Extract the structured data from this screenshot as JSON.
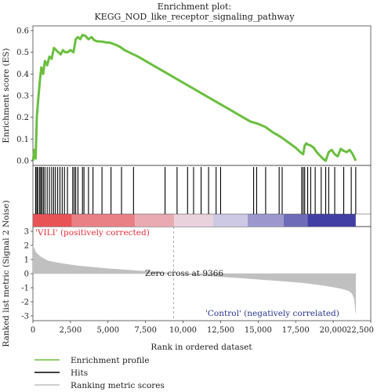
{
  "chart_data": {
    "type": "line",
    "title": "Enrichment plot:",
    "subtitle": "KEGG_NOD_like_receptor_signaling_pathway",
    "xlabel": "Rank in ordered dataset",
    "ylabel_top": "Enrichment score (ES)",
    "ylabel_bottom": "Ranked list metric (Signal 2 Noise)",
    "xlim": [
      0,
      22500
    ],
    "es_ylim": [
      0,
      0.6
    ],
    "metric_ylim": [
      -3,
      3
    ],
    "x_ticks": [
      0,
      2500,
      5000,
      7500,
      10000,
      12500,
      15000,
      17500,
      20000,
      22500
    ],
    "x_tick_labels": [
      "0",
      "2,500",
      "5,000",
      "7,500",
      "10,000",
      "12,500",
      "15,000",
      "17,500",
      "20,000",
      "22,500"
    ],
    "es_ticks": [
      0.0,
      0.1,
      0.2,
      0.3,
      0.4,
      0.5,
      0.6
    ],
    "es_tick_labels": [
      "0.0",
      "0.1",
      "0.2",
      "0.3",
      "0.4",
      "0.5",
      "0.6"
    ],
    "metric_ticks": [
      3,
      2,
      1,
      0,
      -1,
      -2,
      -3
    ],
    "metric_tick_labels": [
      "3",
      "2",
      "1",
      "0",
      "-1",
      "-2",
      "-3"
    ],
    "series": [
      {
        "name": "Enrichment profile",
        "color": "#6abf3f",
        "x": [
          0,
          100,
          180,
          260,
          350,
          450,
          560,
          680,
          800,
          950,
          1100,
          1250,
          1400,
          1550,
          1700,
          1850,
          2000,
          2150,
          2300,
          2500,
          2700,
          2850,
          3000,
          3150,
          3300,
          3500,
          3700,
          3900,
          4100,
          4300,
          4500,
          4700,
          4900,
          5100,
          5300,
          5500,
          5800,
          6100,
          6400,
          6700,
          7000,
          8000,
          9000,
          10000,
          11000,
          12000,
          13000,
          14000,
          14500,
          15000,
          15500,
          16000,
          16500,
          17000,
          17500,
          17800,
          18000,
          18100,
          18200,
          18300,
          18500,
          18700,
          18900,
          19100,
          19300,
          19500,
          19700,
          19900,
          20000,
          20100,
          20300,
          20500,
          20700,
          20900,
          21100,
          21300,
          21500
        ],
        "y": [
          0.0,
          0.05,
          0.01,
          0.2,
          0.28,
          0.36,
          0.43,
          0.4,
          0.46,
          0.44,
          0.48,
          0.47,
          0.52,
          0.51,
          0.5,
          0.49,
          0.51,
          0.5,
          0.5,
          0.51,
          0.5,
          0.56,
          0.57,
          0.56,
          0.58,
          0.575,
          0.56,
          0.57,
          0.555,
          0.55,
          0.55,
          0.548,
          0.545,
          0.545,
          0.54,
          0.535,
          0.525,
          0.51,
          0.5,
          0.49,
          0.48,
          0.44,
          0.4,
          0.36,
          0.32,
          0.28,
          0.24,
          0.2,
          0.18,
          0.17,
          0.155,
          0.13,
          0.11,
          0.085,
          0.06,
          0.04,
          0.03,
          0.07,
          0.08,
          0.075,
          0.07,
          0.06,
          0.04,
          0.025,
          0.01,
          0.0,
          0.04,
          0.05,
          0.04,
          0.03,
          0.02,
          0.055,
          0.045,
          0.04,
          0.05,
          0.03,
          0.0
        ]
      },
      {
        "name": "Hits",
        "color": "#000000",
        "x": [
          180,
          260,
          330,
          450,
          520,
          600,
          700,
          800,
          950,
          1100,
          1250,
          1380,
          1500,
          1650,
          1800,
          1950,
          2100,
          2300,
          2650,
          2750,
          2850,
          3000,
          3300,
          3400,
          3700,
          4000,
          4600,
          5200,
          5900,
          6700,
          8800,
          9600,
          10300,
          10700,
          11200,
          11700,
          12200,
          12500,
          14700,
          14900,
          15500,
          16400,
          16600,
          17900,
          18000,
          18100,
          18300,
          18500,
          18800,
          19200,
          19500,
          19700,
          20100,
          20700,
          21200,
          21500
        ]
      },
      {
        "name": "Ranking metric scores",
        "color": "#c0c0c0",
        "x": [
          0,
          200,
          500,
          1000,
          1500,
          2000,
          3000,
          4000,
          5000,
          6000,
          7000,
          8000,
          9000,
          9366,
          10000,
          11000,
          12000,
          13000,
          14000,
          15000,
          16000,
          17000,
          18000,
          19000,
          20000,
          20500,
          21000,
          21200,
          21300,
          21400,
          21450,
          21500
        ],
        "y": [
          2.0,
          1.5,
          1.2,
          0.9,
          0.8,
          0.7,
          0.55,
          0.45,
          0.35,
          0.28,
          0.2,
          0.13,
          0.05,
          0.0,
          -0.05,
          -0.12,
          -0.18,
          -0.25,
          -0.32,
          -0.4,
          -0.48,
          -0.56,
          -0.65,
          -0.78,
          -0.95,
          -1.05,
          -1.2,
          -1.35,
          -1.5,
          -1.8,
          -2.3,
          -2.8
        ]
      }
    ],
    "color_bar": {
      "left_color": "#e83838",
      "middle_color": "#eae6f2",
      "right_color": "#2d2a9a",
      "boundaries": [
        0,
        2600,
        6800,
        9400,
        12000,
        14300,
        16700,
        18300,
        21500
      ]
    },
    "annotations": {
      "zero_cross": "Zero cross at 9366",
      "zero_cross_x": 9366,
      "positive_label": "'VILI' (positively corrected)",
      "negative_label": "'Control' (negatively correlated)"
    },
    "legend_placement": "bottom-left"
  }
}
